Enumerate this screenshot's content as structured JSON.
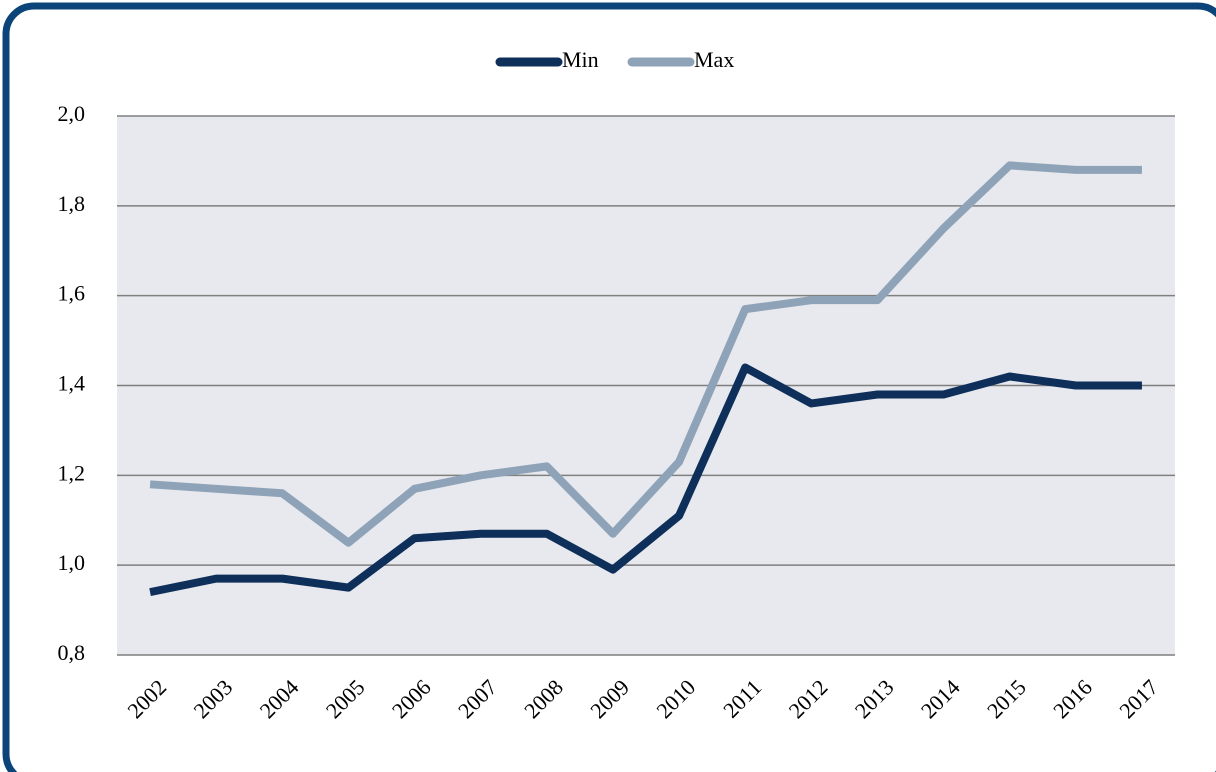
{
  "chart_data": {
    "type": "line",
    "categories": [
      "2002",
      "2003",
      "2004",
      "2005",
      "2006",
      "2007",
      "2008",
      "2009",
      "2010",
      "2011",
      "2012",
      "2013",
      "2014",
      "2015",
      "2016",
      "2017"
    ],
    "series": [
      {
        "name": "Min",
        "color": "#0d2f5a",
        "values": [
          0.94,
          0.97,
          0.97,
          0.95,
          1.06,
          1.07,
          1.07,
          0.99,
          1.11,
          1.44,
          1.36,
          1.38,
          1.38,
          1.42,
          1.4,
          1.4
        ]
      },
      {
        "name": "Max",
        "color": "#8fa3b8",
        "values": [
          1.18,
          1.17,
          1.16,
          1.05,
          1.17,
          1.2,
          1.22,
          1.07,
          1.23,
          1.57,
          1.59,
          1.59,
          1.75,
          1.89,
          1.88,
          1.88
        ]
      }
    ],
    "ylim": [
      0.8,
      2.0
    ],
    "yticks": [
      {
        "value": 0.8,
        "label": "0,8"
      },
      {
        "value": 1.0,
        "label": "1,0"
      },
      {
        "value": 1.2,
        "label": "1,2"
      },
      {
        "value": 1.4,
        "label": "1,4"
      },
      {
        "value": 1.6,
        "label": "1,6"
      },
      {
        "value": 1.8,
        "label": "1,8"
      },
      {
        "value": 2.0,
        "label": "2,0"
      }
    ],
    "grid": true,
    "legend": "top",
    "plot_background": "#e7e9ee"
  }
}
